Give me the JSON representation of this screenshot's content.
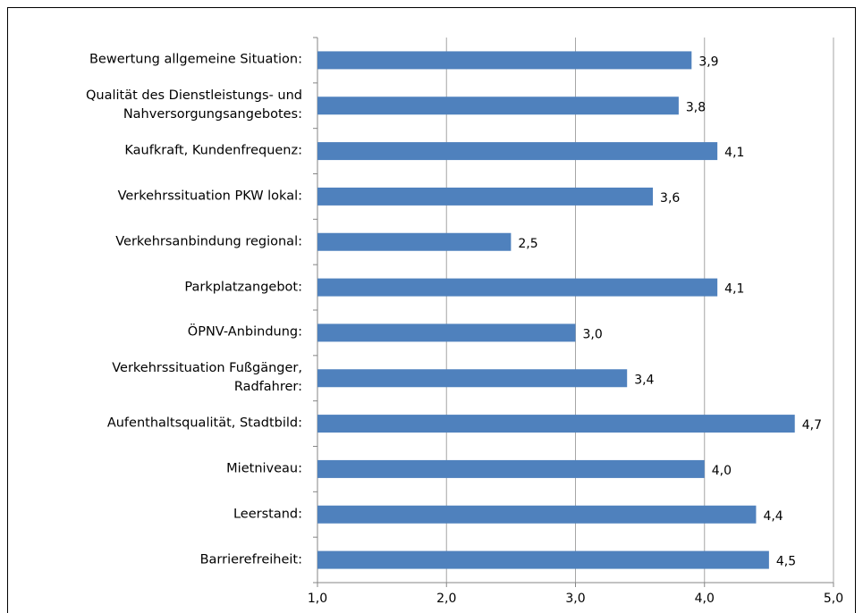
{
  "chart_data": {
    "type": "bar",
    "orientation": "horizontal",
    "categories": [
      "Bewertung allgemeine Situation:",
      "Qualität des Dienstleistungs- und\nNahversorgungsangebotes:",
      "Kaufkraft, Kundenfrequenz:",
      "Verkehrssituation PKW lokal:",
      "Verkehrsanbindung regional:",
      "Parkplatzangebot:",
      "ÖPNV-Anbindung:",
      "Verkehrssituation Fußgänger,\nRadfahrer:",
      "Aufenthaltsqualität, Stadtbild:",
      "Mietniveau:",
      "Leerstand:",
      "Barrierefreiheit:"
    ],
    "values": [
      3.9,
      3.8,
      4.1,
      3.6,
      2.5,
      4.1,
      3.0,
      3.4,
      4.7,
      4.0,
      4.4,
      4.5
    ],
    "value_labels": [
      "3,9",
      "3,8",
      "4,1",
      "3,6",
      "2,5",
      "4,1",
      "3,0",
      "3,4",
      "4,7",
      "4,0",
      "4,4",
      "4,5"
    ],
    "color": "#4f81bd",
    "xlim": [
      1,
      5
    ],
    "xticks": [
      {
        "value": 1,
        "label": "1,0"
      },
      {
        "value": 2,
        "label": "2,0"
      },
      {
        "value": 3,
        "label": "3,0"
      },
      {
        "value": 4,
        "label": "4,0"
      },
      {
        "value": 5,
        "label": "5,0"
      }
    ],
    "grid": true
  }
}
